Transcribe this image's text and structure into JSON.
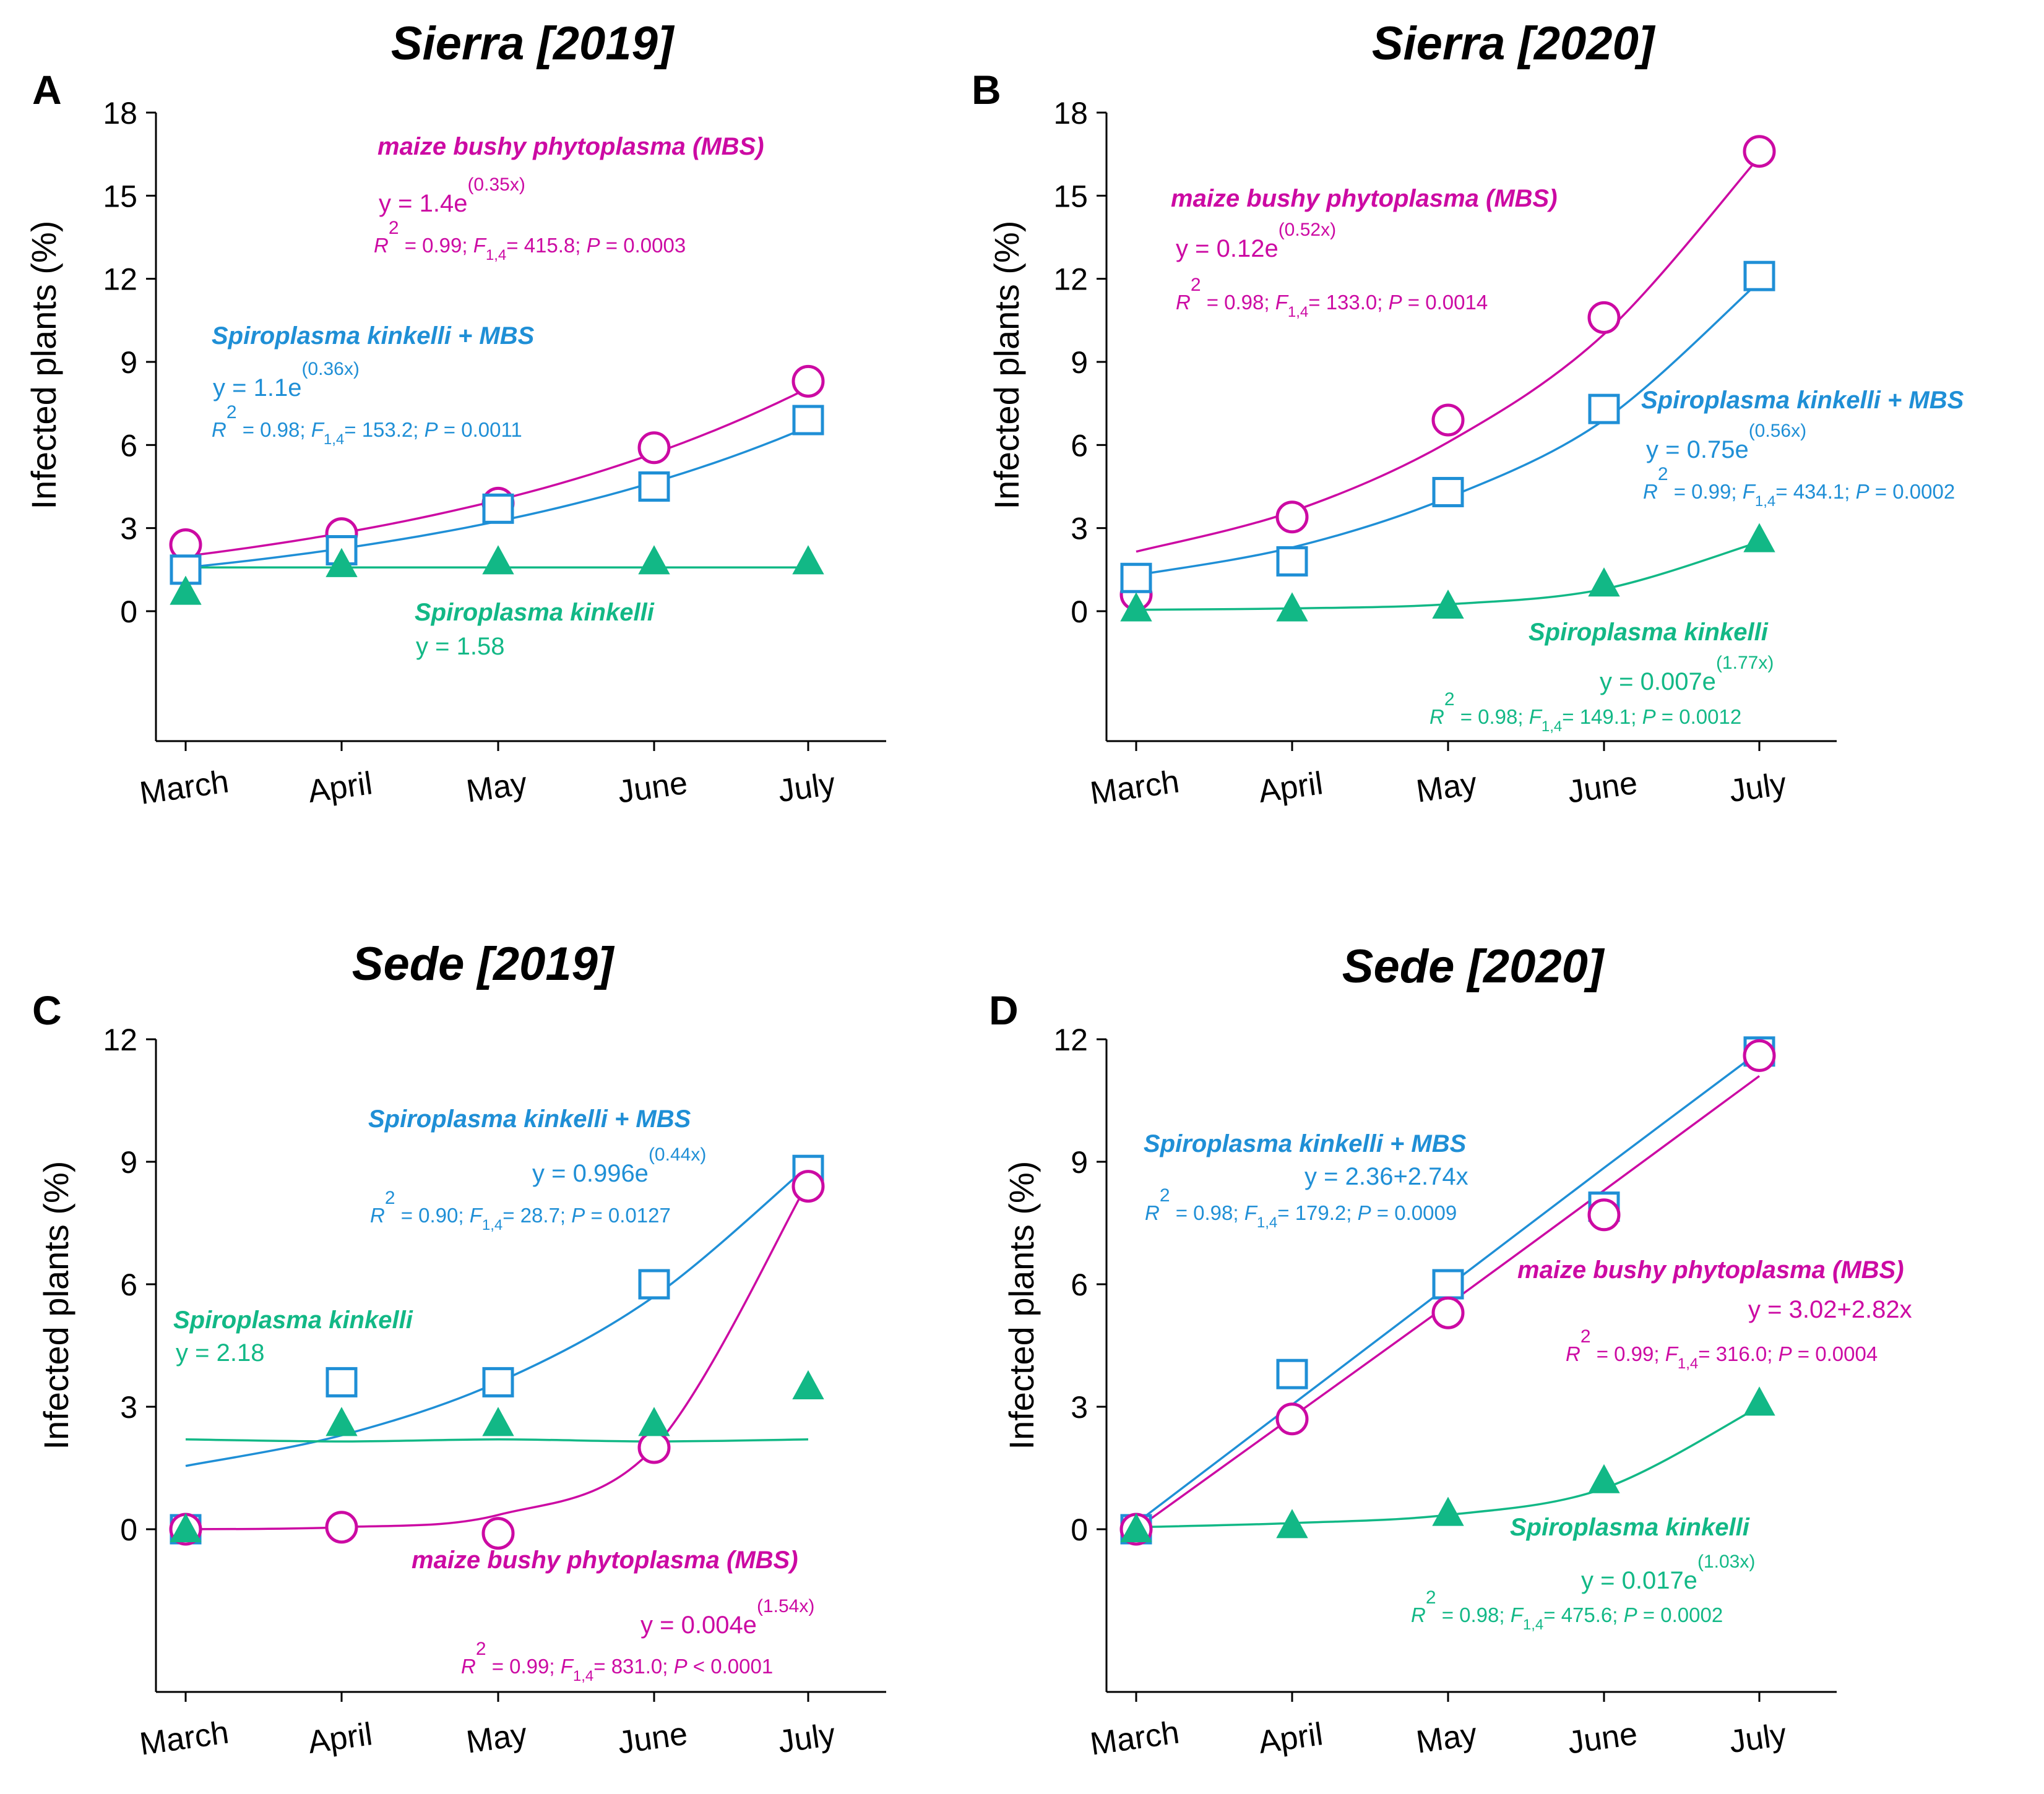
{
  "colors": {
    "mbs": "#cc0aa3",
    "sk_mbs": "#1f8fd6",
    "sk": "#12b886",
    "axis": "#000000"
  },
  "chart_data": [
    {
      "type": "scatter",
      "panel_label": "A",
      "title": "Sierra [2019]",
      "ylabel": "Infected plants (%)",
      "categories": [
        "March",
        "April",
        "May",
        "June",
        "July"
      ],
      "yticks": [
        0,
        3,
        6,
        9,
        12,
        15,
        18
      ],
      "ylim": [
        -4.5,
        18
      ],
      "series": [
        {
          "key": "mbs",
          "marker": "circle",
          "values": [
            2.4,
            2.8,
            3.9,
            5.9,
            8.3
          ],
          "name": "maize bushy phytoplasma (MBS)",
          "equation": "y = 1.4e",
          "exponent": "(0.35x)",
          "fit": {
            "kind": "exp",
            "a": 1.4,
            "b": 0.35
          },
          "stats": {
            "r2": "R",
            "r2_sup": "2",
            "r2_val": "= 0.99;",
            "f": "F",
            "f_sub": "1,4",
            "f_val": "= 415.8;",
            "p": "P",
            "p_val": "= 0.0003"
          }
        },
        {
          "key": "sk_mbs",
          "marker": "square",
          "values": [
            1.5,
            2.2,
            3.7,
            4.5,
            6.9
          ],
          "name": "Spiroplasma kinkelli + MBS",
          "equation": "y = 1.1e",
          "exponent": "(0.36x)",
          "fit": {
            "kind": "exp",
            "a": 1.1,
            "b": 0.36
          },
          "stats": {
            "r2": "R",
            "r2_sup": "2",
            "r2_val": "= 0.98;",
            "f": "F",
            "f_sub": "1,4",
            "f_val": "= 153.2;",
            "p": "P",
            "p_val": "= 0.0011"
          }
        },
        {
          "key": "sk",
          "marker": "triangle",
          "values": [
            0.7,
            1.7,
            1.8,
            1.8,
            1.8
          ],
          "name": "Spiroplasma kinkelli",
          "equation": "y = 1.58",
          "exponent": "",
          "fit": {
            "kind": "const",
            "a": 1.58
          },
          "stats": null
        }
      ]
    },
    {
      "type": "scatter",
      "panel_label": "B",
      "title": "Sierra [2020]",
      "ylabel": "Infected plants (%)",
      "categories": [
        "March",
        "April",
        "May",
        "June",
        "July"
      ],
      "yticks": [
        0,
        3,
        6,
        9,
        12,
        15,
        18
      ],
      "ylim": [
        -4.5,
        18
      ],
      "series": [
        {
          "key": "mbs",
          "marker": "circle",
          "values": [
            0.6,
            3.4,
            6.9,
            10.6,
            16.6
          ],
          "name": "maize bushy phytoplasma (MBS)",
          "equation": "y = 0.12e",
          "exponent": "(0.52x)",
          "fit": {
            "kind": "curve",
            "points": [
              2.15,
              3.6,
              6.1,
              10.0,
              16.4
            ]
          },
          "stats": {
            "r2": "R",
            "r2_sup": "2",
            "r2_val": "= 0.98;",
            "f": "F",
            "f_sub": "1,4",
            "f_val": "= 133.0;",
            "p": "P",
            "p_val": "= 0.0014"
          }
        },
        {
          "key": "sk_mbs",
          "marker": "square",
          "values": [
            1.2,
            1.8,
            4.3,
            7.3,
            12.1
          ],
          "name": "Spiroplasma kinkelli + MBS",
          "equation": "y = 0.75e",
          "exponent": "(0.56x)",
          "fit": {
            "kind": "curve",
            "points": [
              1.3,
              2.3,
              4.1,
              6.9,
              11.9
            ]
          },
          "stats": {
            "r2": "R",
            "r2_sup": "2",
            "r2_val": "= 0.99;",
            "f": "F",
            "f_sub": "1,4",
            "f_val": "= 434.1;",
            "p": "P",
            "p_val": "= 0.0002"
          }
        },
        {
          "key": "sk",
          "marker": "triangle",
          "values": [
            0.1,
            0.1,
            0.2,
            1.0,
            2.6
          ],
          "name": "Spiroplasma kinkelli",
          "equation": "y = 0.007e",
          "exponent": "(1.77x)",
          "fit": {
            "kind": "curve",
            "points": [
              0.05,
              0.1,
              0.25,
              0.8,
              2.5
            ]
          },
          "stats": {
            "r2": "R",
            "r2_sup": "2",
            "r2_val": "= 0.98;",
            "f": "F",
            "f_sub": "1,4",
            "f_val": "= 149.1;",
            "p": "P",
            "p_val": "= 0.0012"
          }
        }
      ]
    },
    {
      "type": "scatter",
      "panel_label": "C",
      "title": "Sede [2019]",
      "ylabel": "Infected plants (%)",
      "categories": [
        "March",
        "April",
        "May",
        "June",
        "July"
      ],
      "yticks": [
        0,
        3,
        6,
        9,
        12
      ],
      "ylim": [
        -3.8,
        12
      ],
      "series": [
        {
          "key": "sk_mbs",
          "marker": "square",
          "values": [
            0.0,
            3.6,
            3.6,
            6.0,
            8.8
          ],
          "name": "Spiroplasma kinkelli + MBS",
          "equation": "y = 0.996e",
          "exponent": "(0.44x)",
          "fit": {
            "kind": "curve",
            "points": [
              1.55,
              2.3,
              3.6,
              5.7,
              8.9
            ]
          },
          "stats": {
            "r2": "R",
            "r2_sup": "2",
            "r2_val": "= 0.90;",
            "f": "F",
            "f_sub": "1,4",
            "f_val": "= 28.7;",
            "p": "P",
            "p_val": "= 0.0127"
          }
        },
        {
          "key": "mbs",
          "marker": "circle",
          "values": [
            0.0,
            0.05,
            -0.1,
            2.0,
            8.4
          ],
          "name": "maize bushy phytoplasma (MBS)",
          "equation": "y = 0.004e",
          "exponent": "(1.54x)",
          "fit": {
            "kind": "curve",
            "points": [
              0.0,
              0.05,
              0.35,
              2.0,
              8.5
            ]
          },
          "stats": {
            "r2": "R",
            "r2_sup": "2",
            "r2_val": "= 0.99;",
            "f": "F",
            "f_sub": "1,4",
            "f_val": "= 831.0;",
            "p": "P",
            "p_val": "< 0.0001"
          }
        },
        {
          "key": "sk",
          "marker": "triangle",
          "values": [
            0.0,
            2.6,
            2.6,
            2.6,
            3.5
          ],
          "name": "Spiroplasma kinkelli",
          "equation": "y = 2.18",
          "exponent": "",
          "fit": {
            "kind": "curve",
            "points": [
              2.2,
              2.15,
              2.2,
              2.15,
              2.2
            ]
          },
          "stats": null
        }
      ]
    },
    {
      "type": "scatter",
      "panel_label": "D",
      "title": "Sede [2020]",
      "ylabel": "Infected plants (%)",
      "categories": [
        "March",
        "April",
        "May",
        "June",
        "July"
      ],
      "yticks": [
        0,
        3,
        6,
        9,
        12
      ],
      "ylim": [
        -3.8,
        12
      ],
      "series": [
        {
          "key": "sk_mbs",
          "marker": "square",
          "values": [
            0.0,
            3.8,
            6.0,
            7.9,
            11.7
          ],
          "name": "Spiroplasma kinkelli + MBS",
          "equation": "y = 2.36+2.74x",
          "exponent": "",
          "fit": {
            "kind": "curve",
            "points": [
              0.15,
              3.05,
              5.95,
              8.85,
              11.7
            ]
          },
          "stats": {
            "r2": "R",
            "r2_sup": "2",
            "r2_val": "= 0.98;",
            "f": "F",
            "f_sub": "1,4",
            "f_val": "= 179.2;",
            "p": "P",
            "p_val": "= 0.0009"
          }
        },
        {
          "key": "mbs",
          "marker": "circle",
          "values": [
            0.0,
            2.7,
            5.3,
            7.7,
            11.6
          ],
          "name": "maize bushy phytoplasma (MBS)",
          "equation": "y = 3.02+2.82x",
          "exponent": "",
          "fit": {
            "kind": "curve",
            "points": [
              0.0,
              2.75,
              5.5,
              8.3,
              11.1
            ]
          },
          "stats": {
            "r2": "R",
            "r2_sup": "2",
            "r2_val": "= 0.99;",
            "f": "F",
            "f_sub": "1,4",
            "f_val": "= 316.0;",
            "p": "P",
            "p_val": "= 0.0004"
          }
        },
        {
          "key": "sk",
          "marker": "triangle",
          "values": [
            0.0,
            0.1,
            0.4,
            1.2,
            3.1
          ],
          "name": "Spiroplasma kinkelli",
          "equation": "y = 0.017e",
          "exponent": "(1.03x)",
          "fit": {
            "kind": "curve",
            "points": [
              0.05,
              0.15,
              0.35,
              1.0,
              3.0
            ]
          },
          "stats": {
            "r2": "R",
            "r2_sup": "2",
            "r2_val": "= 0.98;",
            "f": "F",
            "f_sub": "1,4",
            "f_val": "= 475.6;",
            "p": "P",
            "p_val": "= 0.0002"
          }
        }
      ]
    }
  ]
}
